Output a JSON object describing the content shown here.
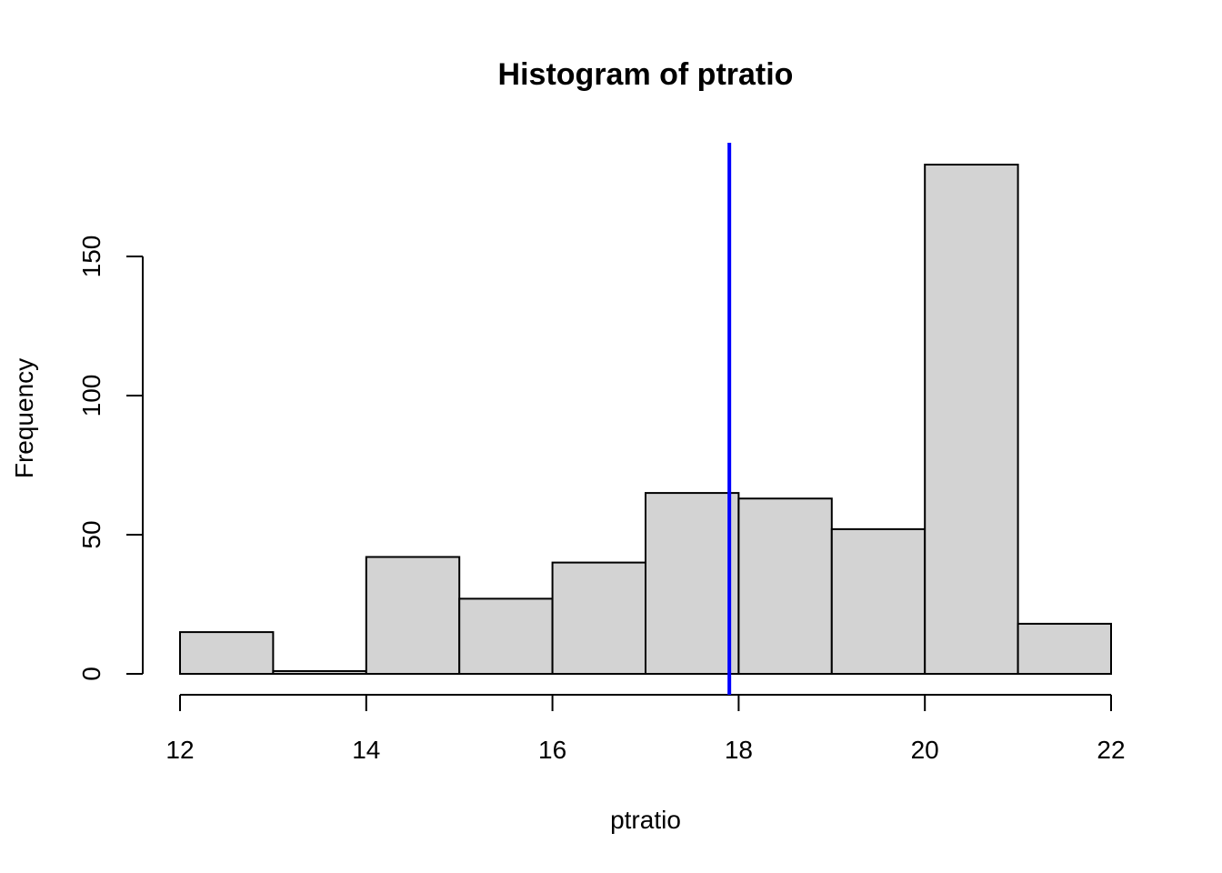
{
  "chart_data": {
    "type": "bar",
    "title": "Histogram of ptratio",
    "xlabel": "ptratio",
    "ylabel": "Frequency",
    "bins": [
      {
        "from": 12,
        "to": 13,
        "count": 15
      },
      {
        "from": 13,
        "to": 14,
        "count": 1
      },
      {
        "from": 14,
        "to": 15,
        "count": 42
      },
      {
        "from": 15,
        "to": 16,
        "count": 27
      },
      {
        "from": 16,
        "to": 17,
        "count": 40
      },
      {
        "from": 17,
        "to": 18,
        "count": 65
      },
      {
        "from": 18,
        "to": 19,
        "count": 63
      },
      {
        "from": 19,
        "to": 20,
        "count": 52
      },
      {
        "from": 20,
        "to": 21,
        "count": 183
      },
      {
        "from": 21,
        "to": 22,
        "count": 18
      }
    ],
    "x_ticks": [
      12,
      14,
      16,
      18,
      20,
      22
    ],
    "y_ticks": [
      0,
      50,
      100,
      150
    ],
    "xlim": [
      12,
      22
    ],
    "ylim": [
      0,
      190
    ],
    "vline": {
      "x": 17.9,
      "color": "#0000ff"
    },
    "bar_color": "#d3d3d3",
    "grid": false,
    "legend": "none"
  }
}
